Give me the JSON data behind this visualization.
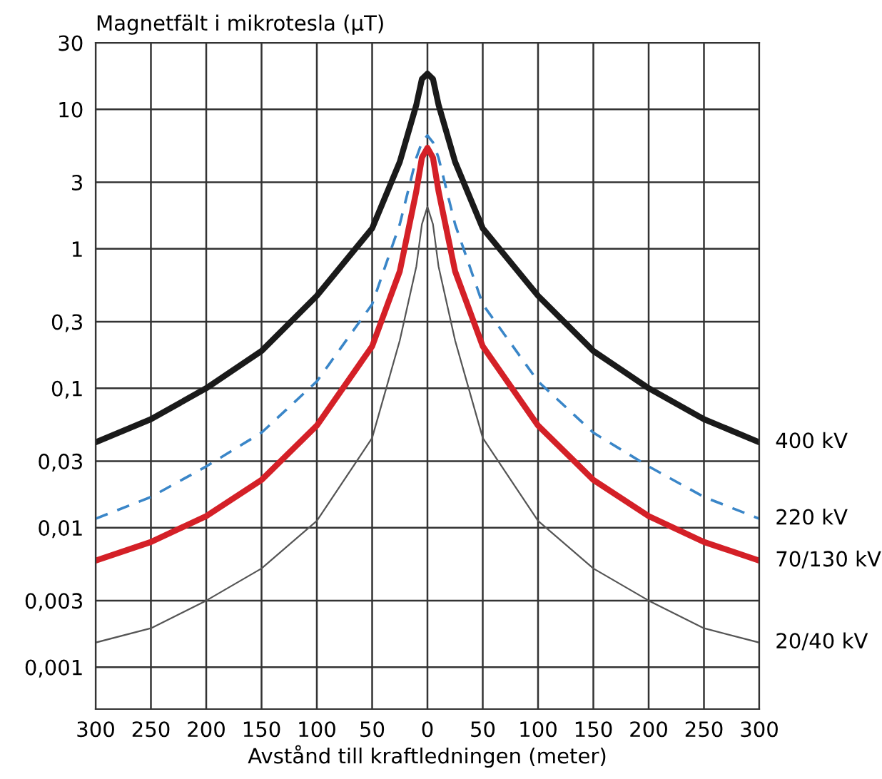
{
  "chart_data": {
    "type": "line",
    "ylabel": "Magnetfält i mikrotesla (µT)",
    "xlabel": "Avstånd till kraftledningen (meter)",
    "x": [
      -300,
      -250,
      -200,
      -150,
      -100,
      -50,
      -25,
      -10,
      -5,
      0,
      5,
      10,
      25,
      50,
      100,
      150,
      200,
      250,
      300
    ],
    "series": [
      {
        "name": "400 kV",
        "color": "#1a1a1a",
        "values": [
          0.041,
          0.06,
          0.1,
          0.185,
          0.46,
          1.4,
          4.2,
          10.8,
          16.5,
          18,
          16.5,
          10.8,
          4.2,
          1.4,
          0.46,
          0.185,
          0.1,
          0.06,
          0.041
        ]
      },
      {
        "name": "220 kV",
        "color": "#3a86c8",
        "line_style": "dashed",
        "values": [
          0.0116,
          0.0166,
          0.0275,
          0.048,
          0.112,
          0.4,
          1.5,
          4.5,
          5.8,
          6.5,
          5.8,
          4.5,
          1.5,
          0.4,
          0.112,
          0.048,
          0.0275,
          0.0166,
          0.0116
        ]
      },
      {
        "name": "70/130 kV",
        "color": "#d42027",
        "values": [
          0.0058,
          0.0079,
          0.0121,
          0.022,
          0.054,
          0.2,
          0.69,
          2.6,
          4.5,
          5.3,
          4.5,
          2.6,
          0.69,
          0.2,
          0.054,
          0.022,
          0.0121,
          0.0079,
          0.0058
        ]
      },
      {
        "name": "20/40 kV",
        "color": "#555555",
        "values": [
          0.0015,
          0.0019,
          0.003,
          0.0051,
          0.0112,
          0.044,
          0.22,
          0.75,
          1.5,
          2.0,
          1.5,
          0.75,
          0.22,
          0.044,
          0.0112,
          0.0051,
          0.003,
          0.0019,
          0.0015
        ]
      }
    ],
    "log": "y",
    "ylim": [
      0.0005,
      30
    ],
    "yticks": [
      {
        "value": 0.001,
        "label": "0,001"
      },
      {
        "value": 0.003,
        "label": "0,003"
      },
      {
        "value": 0.01,
        "label": "0,01"
      },
      {
        "value": 0.03,
        "label": "0,03"
      },
      {
        "value": 0.1,
        "label": "0,1"
      },
      {
        "value": 0.3,
        "label": "0,3"
      },
      1,
      3,
      10,
      30
    ],
    "xlim": [
      -300,
      300
    ],
    "xticks": [
      {
        "value": -300,
        "label": "300"
      },
      {
        "value": -250,
        "label": "250"
      },
      {
        "value": -200,
        "label": "200"
      },
      {
        "value": -150,
        "label": "150"
      },
      {
        "value": -100,
        "label": "100"
      },
      {
        "value": -50,
        "label": "50"
      },
      0,
      50,
      100,
      150,
      200,
      250,
      300
    ],
    "grid": true,
    "legend": false,
    "marker": "none",
    "line_style": "solid"
  }
}
